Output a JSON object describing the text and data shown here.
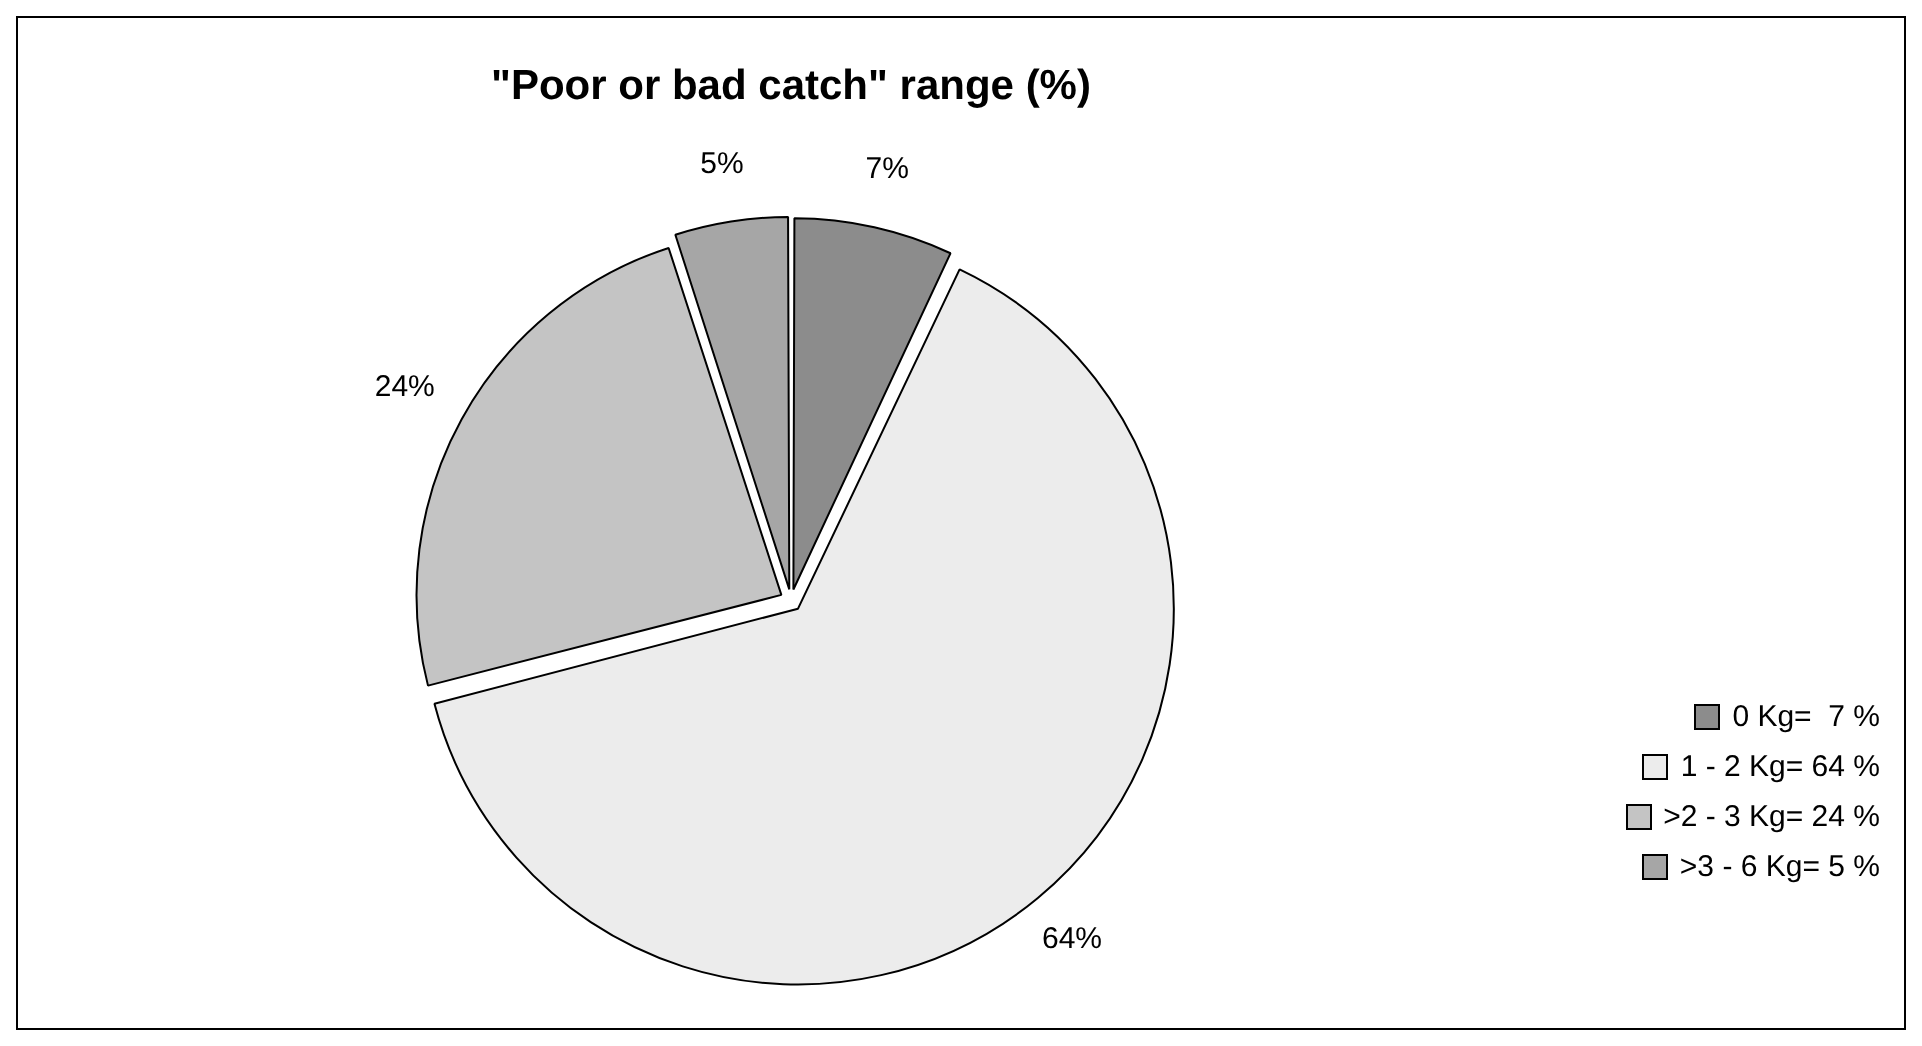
{
  "chart_data": {
    "type": "pie",
    "title": "\"Poor or bad catch\" range (%)",
    "categories": [
      "0 Kg=  7 %",
      "1 - 2 Kg= 64 %",
      ">2 - 3 Kg= 24 %",
      ">3 - 6 Kg= 5 %"
    ],
    "values": [
      7,
      64,
      24,
      5
    ],
    "colors": [
      "#8c8c8c",
      "#ececec",
      "#c4c4c4",
      "#a6a6a6"
    ],
    "value_labels": [
      "7%",
      "64%",
      "24%",
      "5%"
    ],
    "legend": "right"
  }
}
